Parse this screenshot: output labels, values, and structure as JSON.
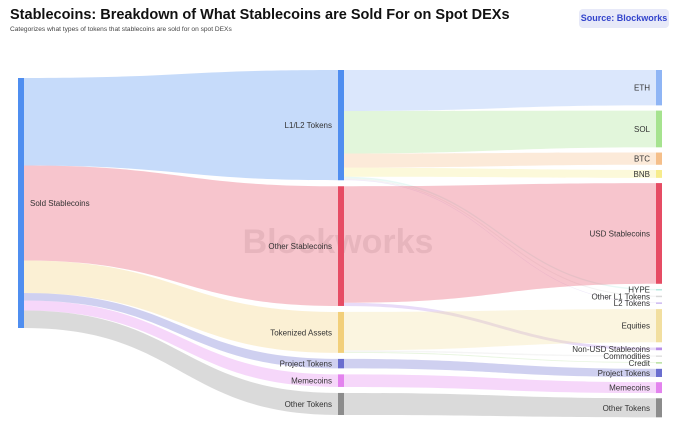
{
  "header": {
    "title": "Stablecoins: Breakdown of What Stablecoins are Sold For on Spot DEXs",
    "subtitle": "Categorizes what types of tokens that stablecoins are sold for on spot DEXs",
    "source_label": "Source: Blockworks",
    "watermark": "Blockworks"
  },
  "colors": {
    "source_node": "#4f8ef0",
    "l1l2": "#4f8ef0",
    "other_stablecoins": "#e64c64",
    "tokenized_assets": "#f2cf7a",
    "project_tokens": "#6a6ecf",
    "memecoins": "#e383ee",
    "other_tokens": "#8c8c8c"
  },
  "chart_data": {
    "type": "sankey",
    "title": "Stablecoins: Breakdown of What Stablecoins are Sold For on Spot DEXs",
    "subtitle": "Categorizes what types of tokens that stablecoins are sold for on spot DEXs",
    "nodes": [
      {
        "id": "sold",
        "name": "Sold Stablecoins",
        "color": "#4f8ef0"
      },
      {
        "id": "l1l2",
        "name": "L1/L2 Tokens",
        "color": "#4f8ef0"
      },
      {
        "id": "other_stable",
        "name": "Other Stablecoins",
        "color": "#e64c64"
      },
      {
        "id": "tokenized",
        "name": "Tokenized Assets",
        "color": "#f2cf7a"
      },
      {
        "id": "project",
        "name": "Project Tokens",
        "color": "#6a6ecf"
      },
      {
        "id": "meme",
        "name": "Memecoins",
        "color": "#e383ee"
      },
      {
        "id": "other_tok",
        "name": "Other Tokens",
        "color": "#8c8c8c"
      },
      {
        "id": "eth",
        "name": "ETH",
        "color": "#8fb5f5"
      },
      {
        "id": "sol",
        "name": "SOL",
        "color": "#a6e38f"
      },
      {
        "id": "btc",
        "name": "BTC",
        "color": "#f5bf8a"
      },
      {
        "id": "bnb",
        "name": "BNB",
        "color": "#f7ec8c"
      },
      {
        "id": "usd_stable",
        "name": "USD Stablecoins",
        "color": "#e64c64"
      },
      {
        "id": "hype",
        "name": "HYPE",
        "color": "#b8e8e0"
      },
      {
        "id": "other_l1",
        "name": "Other L1 Tokens",
        "color": "#d9d9d9"
      },
      {
        "id": "l2",
        "name": "L2 Tokens",
        "color": "#cdb8f0"
      },
      {
        "id": "equities",
        "name": "Equities",
        "color": "#f2dfa0"
      },
      {
        "id": "non_usd",
        "name": "Non-USD Stablecoins",
        "color": "#b98ee8"
      },
      {
        "id": "commodities",
        "name": "Commodities",
        "color": "#e0e0e0"
      },
      {
        "id": "credit",
        "name": "Credit",
        "color": "#b8e0a0"
      },
      {
        "id": "project_t",
        "name": "Project Tokens",
        "color": "#6a6ecf"
      },
      {
        "id": "meme_t",
        "name": "Memecoins",
        "color": "#e383ee"
      },
      {
        "id": "other_tok_t",
        "name": "Other Tokens",
        "color": "#8c8c8c"
      }
    ],
    "links": [
      {
        "source": "sold",
        "target": "l1l2",
        "value": 35.0
      },
      {
        "source": "sold",
        "target": "other_stable",
        "value": 38.0
      },
      {
        "source": "sold",
        "target": "tokenized",
        "value": 13.0
      },
      {
        "source": "sold",
        "target": "project",
        "value": 3.0
      },
      {
        "source": "sold",
        "target": "meme",
        "value": 4.0
      },
      {
        "source": "sold",
        "target": "other_tok",
        "value": 7.0
      },
      {
        "source": "l1l2",
        "target": "eth",
        "value": 13.0
      },
      {
        "source": "l1l2",
        "target": "sol",
        "value": 13.5
      },
      {
        "source": "l1l2",
        "target": "btc",
        "value": 4.5
      },
      {
        "source": "l1l2",
        "target": "bnb",
        "value": 2.9
      },
      {
        "source": "l1l2",
        "target": "hype",
        "value": 0.5
      },
      {
        "source": "l1l2",
        "target": "other_l1",
        "value": 0.4
      },
      {
        "source": "l1l2",
        "target": "l2",
        "value": 0.2
      },
      {
        "source": "other_stable",
        "target": "usd_stable",
        "value": 37.0
      },
      {
        "source": "other_stable",
        "target": "non_usd",
        "value": 1.0
      },
      {
        "source": "tokenized",
        "target": "equities",
        "value": 12.2
      },
      {
        "source": "tokenized",
        "target": "commodities",
        "value": 0.5
      },
      {
        "source": "tokenized",
        "target": "credit",
        "value": 0.3
      },
      {
        "source": "project",
        "target": "project_t",
        "value": 3.0
      },
      {
        "source": "meme",
        "target": "meme_t",
        "value": 4.0
      },
      {
        "source": "other_tok",
        "target": "other_tok_t",
        "value": 7.0
      }
    ]
  }
}
